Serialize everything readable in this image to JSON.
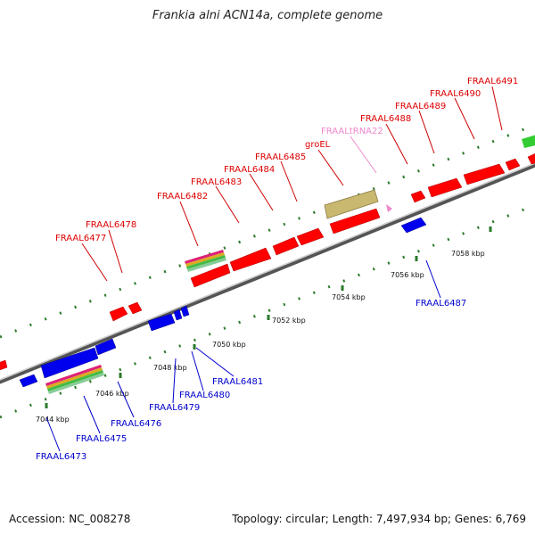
{
  "title": "Frankia alni ACN14a, complete genome",
  "footer": {
    "accession": "Accession: NC_008278",
    "summary": "Topology: circular; Length: 7,497,934 bp; Genes: 6,769"
  },
  "colors": {
    "forward_gene": "#ff0000",
    "reverse_gene": "#0000ee",
    "rrna": "#c8b870",
    "trna": "#ee88cc",
    "other": "#33cc33",
    "backbone": "#777777",
    "tick": "#227722"
  },
  "scale_labels": [
    "7044 kbp",
    "7046 kbp",
    "7048 kbp",
    "7050 kbp",
    "7052 kbp",
    "7054 kbp",
    "7056 kbp",
    "7058 kbp"
  ],
  "forward_labels": [
    "FRAAL6477",
    "FRAAL6478",
    "FRAAL6482",
    "FRAAL6483",
    "FRAAL6484",
    "FRAAL6485",
    "groEL",
    "FRAALtRNA22",
    "FRAAL6488",
    "FRAAL6489",
    "FRAAL6490",
    "FRAAL6491"
  ],
  "reverse_labels": [
    "FRAAL6473",
    "FRAAL6475",
    "FRAAL6476",
    "FRAAL6479",
    "FRAAL6480",
    "FRAAL6481",
    "FRAAL6487"
  ]
}
